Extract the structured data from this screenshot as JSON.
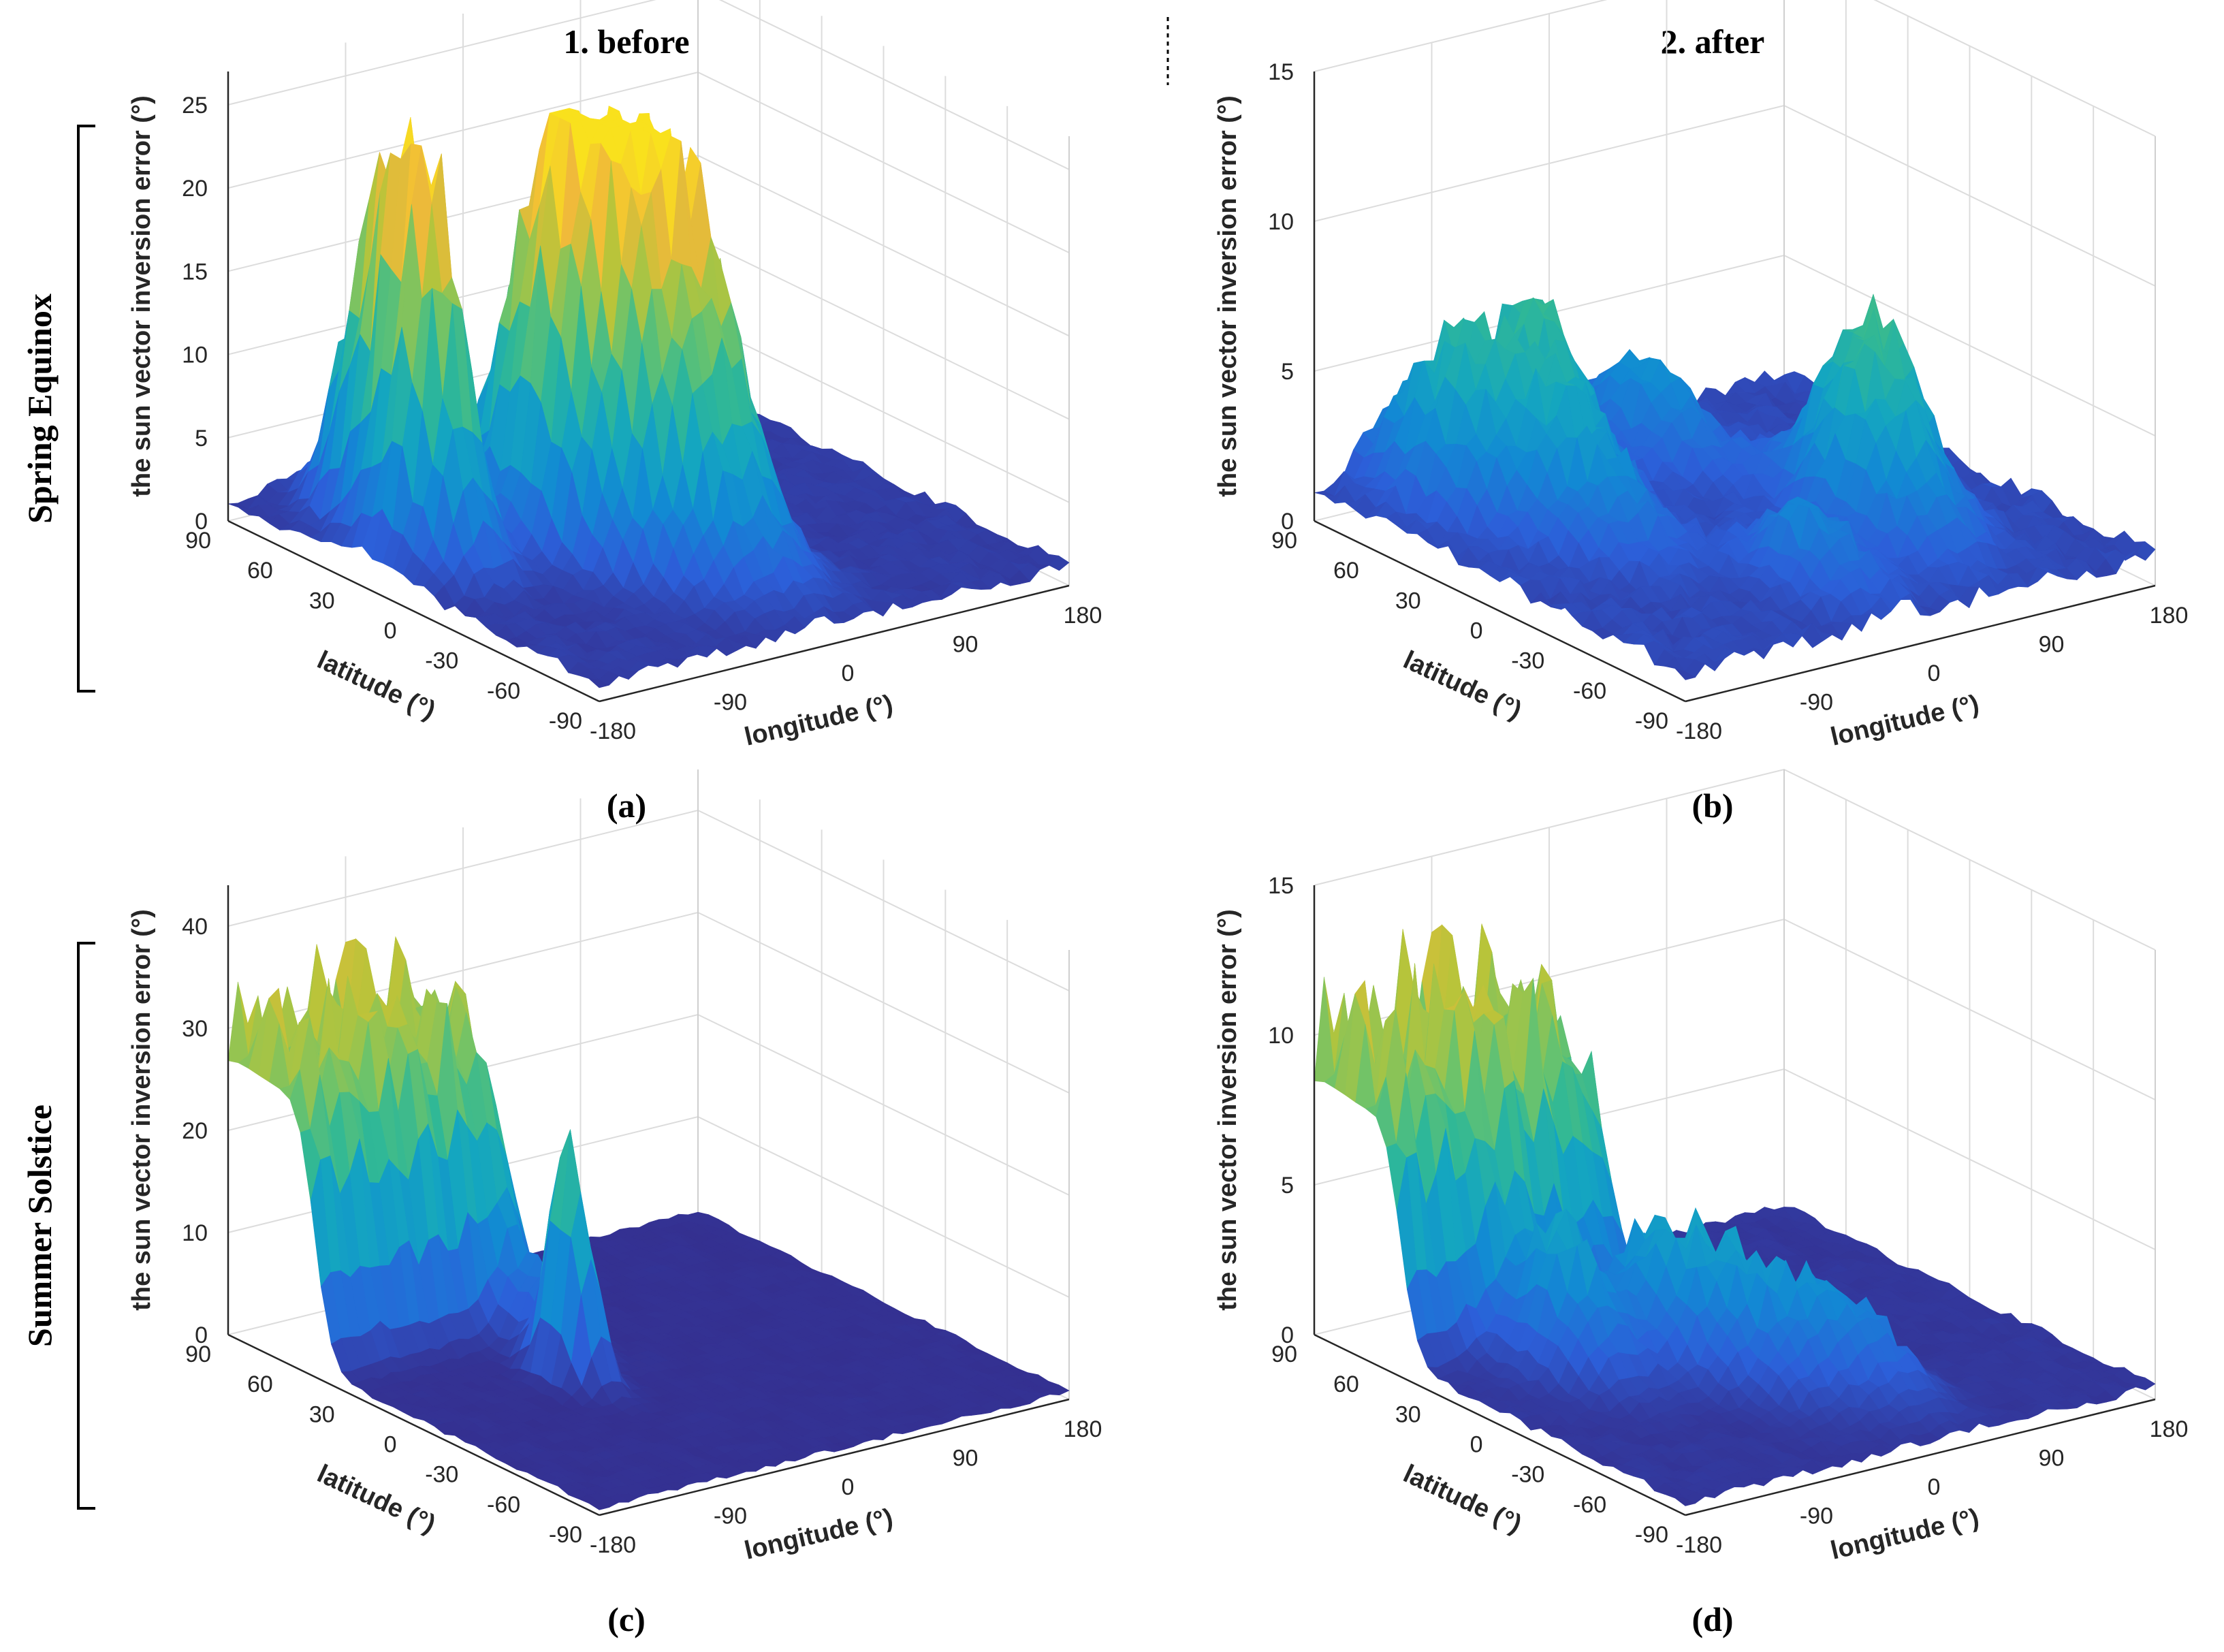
{
  "columns": [
    "1. before",
    "2. after"
  ],
  "rows": [
    "Spring Equinox",
    "Summer Solstice"
  ],
  "colormap": {
    "name": "parula",
    "stops": [
      "#352a87",
      "#2c5fd9",
      "#1289d4",
      "#14a6c0",
      "#30b896",
      "#6cc36b",
      "#b8c43a",
      "#f0b93a",
      "#f9e11d"
    ]
  },
  "chart_data": [
    {
      "id": "a",
      "caption": "(a)",
      "type": "surface3d",
      "row": "Spring Equinox",
      "column": "1. before",
      "zlabel": "the sun vector inversion error (°)",
      "xlabel": "longitude (°)",
      "ylabel": "latitude (°)",
      "xticks": [
        "-180",
        "-90",
        "0",
        "90",
        "180"
      ],
      "yticks": [
        "90",
        "60",
        "30",
        "0",
        "-30",
        "-60",
        "-90"
      ],
      "zticks": [
        "0",
        "5",
        "10",
        "15",
        "20",
        "25"
      ],
      "zlim": [
        0,
        27
      ],
      "base": 0.8,
      "peaks": [
        {
          "lon": -140,
          "lat": 20,
          "height": 23,
          "sigma": 16
        },
        {
          "lon": -130,
          "lat": 50,
          "height": 15,
          "sigma": 14
        },
        {
          "lon": -60,
          "lat": 10,
          "height": 19,
          "sigma": 18
        },
        {
          "lon": -30,
          "lat": -10,
          "height": 23,
          "sigma": 24
        },
        {
          "lon": 0,
          "lat": -25,
          "height": 12,
          "sigma": 24
        },
        {
          "lon": -100,
          "lat": 60,
          "height": 3,
          "sigma": 20
        }
      ]
    },
    {
      "id": "b",
      "caption": "(b)",
      "type": "surface3d",
      "row": "Spring Equinox",
      "column": "2. after",
      "zlabel": "the sun vector inversion error (°)",
      "xlabel": "longitude (°)",
      "ylabel": "latitude (°)",
      "xticks": [
        "-180",
        "-90",
        "0",
        "90",
        "180"
      ],
      "yticks": [
        "90",
        "60",
        "30",
        "0",
        "-30",
        "-60",
        "-90"
      ],
      "zticks": [
        "0",
        "5",
        "10",
        "15"
      ],
      "zlim": [
        0,
        15
      ],
      "base": 0.7,
      "peaks": [
        {
          "lon": -120,
          "lat": 60,
          "height": 5,
          "sigma": 22
        },
        {
          "lon": -60,
          "lat": 60,
          "height": 5.2,
          "sigma": 22
        },
        {
          "lon": -90,
          "lat": 20,
          "height": 3.5,
          "sigma": 25
        },
        {
          "lon": 60,
          "lat": -30,
          "height": 4.5,
          "sigma": 22
        },
        {
          "lon": 90,
          "lat": -10,
          "height": 4.5,
          "sigma": 22
        },
        {
          "lon": 30,
          "lat": 60,
          "height": 3,
          "sigma": 22
        },
        {
          "lon": -20,
          "lat": -50,
          "height": 2.5,
          "sigma": 20
        }
      ]
    },
    {
      "id": "c",
      "caption": "(c)",
      "type": "surface3d",
      "row": "Summer Solstice",
      "column": "1. before",
      "zlabel": "the sun vector inversion error (°)",
      "xlabel": "longitude (°)",
      "ylabel": "latitude (°)",
      "xticks": [
        "-180",
        "-90",
        "0",
        "90",
        "180"
      ],
      "yticks": [
        "90",
        "60",
        "30",
        "0",
        "-30",
        "-60",
        "-90"
      ],
      "zticks": [
        "0",
        "10",
        "20",
        "30",
        "40"
      ],
      "zlim": [
        0,
        44
      ],
      "base": 0.5,
      "plateau": {
        "lon_max": -20,
        "lat_min": 48,
        "height": 26,
        "peak_height": 37
      },
      "peaks": [
        {
          "lon": -60,
          "lat": 0,
          "height": 24,
          "sigma": 9
        },
        {
          "lon": -40,
          "lat": 30,
          "height": 8,
          "sigma": 14
        }
      ]
    },
    {
      "id": "d",
      "caption": "(d)",
      "type": "surface3d",
      "row": "Summer Solstice",
      "column": "2. after",
      "zlabel": "the sun vector inversion error (°)",
      "xlabel": "longitude (°)",
      "ylabel": "latitude (°)",
      "xticks": [
        "-180",
        "-90",
        "0",
        "90",
        "180"
      ],
      "yticks": [
        "90",
        "60",
        "30",
        "0",
        "-30",
        "-60",
        "-90"
      ],
      "zticks": [
        "0",
        "5",
        "10",
        "15"
      ],
      "zlim": [
        0,
        15
      ],
      "base": 0.3,
      "plateau": {
        "lon_max": -10,
        "lat_min": 48,
        "height": 8,
        "peak_height": 13
      },
      "peaks": [
        {
          "lon": -100,
          "lat": 20,
          "height": 4.5,
          "sigma": 20
        },
        {
          "lon": -40,
          "lat": 10,
          "height": 4,
          "sigma": 20
        },
        {
          "lon": -10,
          "lat": -20,
          "height": 3.5,
          "sigma": 22
        },
        {
          "lon": 30,
          "lat": -40,
          "height": 2.5,
          "sigma": 20
        }
      ]
    }
  ]
}
